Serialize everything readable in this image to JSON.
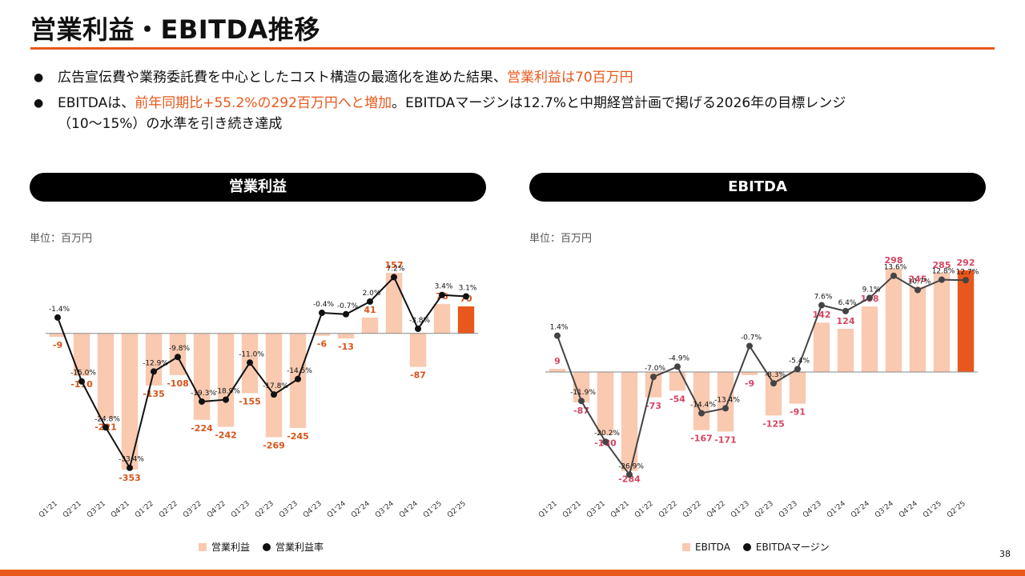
{
  "title": "営業利益・EBITDA推移",
  "bullets": [
    {
      "prefix": "広告宣伝費や業務委託費を中心としたコスト構造の最適化を進めた結果、",
      "highlight": "営業利益は70百万円",
      "suffix": ""
    },
    {
      "prefix": "EBITDAは、",
      "highlight": "前年同期比+55.2%の292百万円へと増加",
      "suffix": "。EBITDAマージンは12.7%と中期経営計画で掲げる2026年の目標レンジ",
      "continuation": "（10〜15%）の水準を引き続き達成"
    }
  ],
  "page_number": "38",
  "colors": {
    "accent": "#e8581c",
    "bar": "#f9c9b0",
    "bar_highlight": "#e8581c",
    "line_left": "#111111",
    "line_right": "#444444"
  },
  "chart_data": [
    {
      "type": "bar",
      "title": "営業利益",
      "unit_label": "単位：百万円",
      "categories": [
        "Q1'21",
        "Q2'21",
        "Q3'21",
        "Q4'21",
        "Q1'22",
        "Q2'22",
        "Q3'22",
        "Q4'22",
        "Q1'23",
        "Q2'23",
        "Q3'23",
        "Q4'23",
        "Q1'24",
        "Q2'24",
        "Q3'24",
        "Q4'24",
        "Q1'25",
        "Q2'25"
      ],
      "series": [
        {
          "name": "営業利益",
          "kind": "bar",
          "values": [
            -9,
            -110,
            -221,
            -353,
            -135,
            -108,
            -224,
            -242,
            -155,
            -269,
            -245,
            -6,
            -13,
            41,
            157,
            -87,
            76,
            70
          ],
          "labels": [
            "-9",
            "-110",
            "-221",
            "-353",
            "-135",
            "-108",
            "-224",
            "-242",
            "-155",
            "-269",
            "-245",
            "-6",
            "-13",
            "41",
            "157",
            "-87",
            "76",
            "70"
          ]
        },
        {
          "name": "営業利益率",
          "kind": "line",
          "values": [
            -1.4,
            -15.0,
            -24.8,
            -33.4,
            -12.9,
            -9.8,
            -19.3,
            -18.9,
            -11.0,
            -17.8,
            -14.5,
            -0.4,
            -0.7,
            2.0,
            7.2,
            -3.8,
            3.4,
            3.1
          ],
          "labels": [
            "-1.4%",
            "-15.0%",
            "-24.8%",
            "-33.4%",
            "-12.9%",
            "-9.8%",
            "-19.3%",
            "-18.9%",
            "-11.0%",
            "-17.8%",
            "-14.5%",
            "-0.4%",
            "-0.7%",
            "2.0%",
            "7.2%",
            "-3.8%",
            "3.4%",
            "3.1%"
          ]
        }
      ],
      "bar_range": [
        -380,
        180
      ],
      "line_range": [
        -36,
        10
      ],
      "highlight_last": true,
      "legend_position": "bottom"
    },
    {
      "type": "bar",
      "title": "EBITDA",
      "unit_label": "単位：百万円",
      "categories": [
        "Q1'21",
        "Q2'21",
        "Q3'21",
        "Q4'21",
        "Q1'22",
        "Q2'22",
        "Q3'22",
        "Q4'22",
        "Q1'23",
        "Q2'23",
        "Q3'23",
        "Q4'23",
        "Q1'24",
        "Q2'24",
        "Q3'24",
        "Q4'24",
        "Q1'25",
        "Q2'25"
      ],
      "series": [
        {
          "name": "EBITDA",
          "kind": "bar",
          "values": [
            9,
            -87,
            -180,
            -284,
            -73,
            -54,
            -167,
            -171,
            -9,
            -125,
            -91,
            142,
            124,
            188,
            298,
            245,
            285,
            292
          ],
          "labels": [
            "9",
            "-87",
            "-180",
            "-284",
            "-73",
            "-54",
            "-167",
            "-171",
            "-9",
            "-125",
            "-91",
            "142",
            "124",
            "188",
            "298",
            "245",
            "285",
            "292"
          ]
        },
        {
          "name": "EBITDAマージン",
          "kind": "line",
          "values": [
            1.4,
            -11.9,
            -20.2,
            -26.9,
            -7.0,
            -4.9,
            -14.4,
            -13.4,
            -0.7,
            -8.3,
            -5.4,
            7.6,
            6.4,
            9.1,
            13.6,
            10.7,
            12.8,
            12.7
          ],
          "labels": [
            "1.4%",
            "-11.9%",
            "-20.2%",
            "-26.9%",
            "-7.0%",
            "-4.9%",
            "-14.4%",
            "-13.4%",
            "-0.7%",
            "-8.3%",
            "-5.4%",
            "7.6%",
            "6.4%",
            "9.1%",
            "13.6%",
            "10.7%",
            "12.8%",
            "12.7%"
          ]
        }
      ],
      "bar_range": [
        -310,
        310
      ],
      "line_range": [
        -28,
        16
      ],
      "highlight_last": true,
      "legend_position": "bottom"
    }
  ]
}
